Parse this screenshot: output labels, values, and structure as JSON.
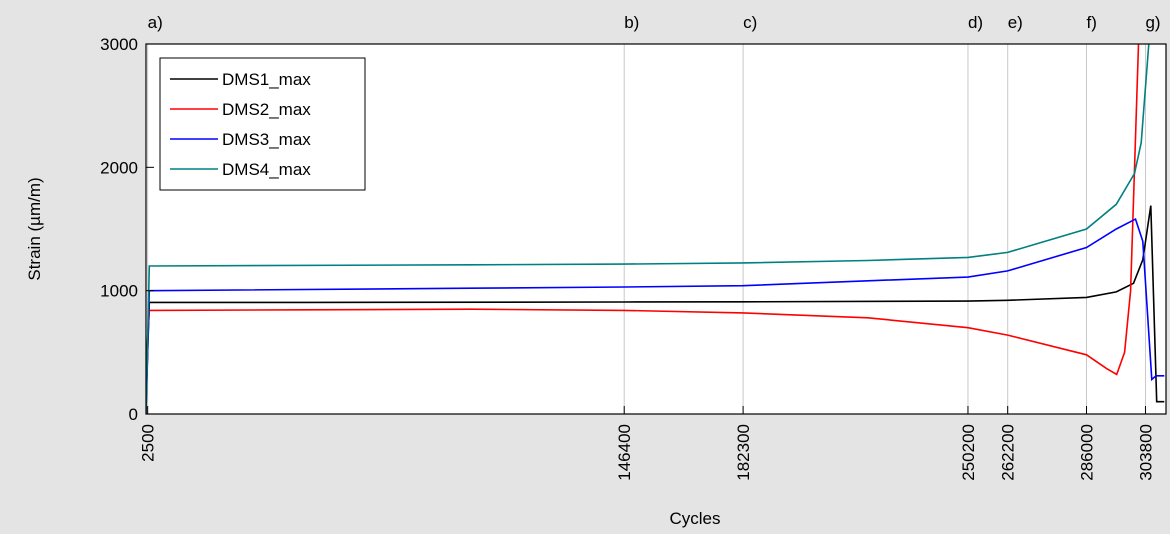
{
  "chart_data": {
    "type": "line",
    "xlabel": "Cycles",
    "ylabel": "Strain (µm/m)",
    "xlim": [
      2000,
      310000
    ],
    "ylim": [
      0,
      3000
    ],
    "xticks": [
      2500,
      146400,
      182300,
      250200,
      262200,
      286000,
      303800
    ],
    "yticks": [
      0,
      1000,
      2000,
      3000
    ],
    "grid": true,
    "legend": "upper left",
    "annotations": [
      {
        "x": 2500,
        "text": "a)"
      },
      {
        "x": 146400,
        "text": "b)"
      },
      {
        "x": 182300,
        "text": "c)"
      },
      {
        "x": 250200,
        "text": "d)"
      },
      {
        "x": 262200,
        "text": "e)"
      },
      {
        "x": 286000,
        "text": "f)"
      },
      {
        "x": 303800,
        "text": "g)"
      }
    ],
    "series": [
      {
        "name": "DMS1_max",
        "color": "#000000",
        "x": [
          2000,
          3000,
          50000,
          146400,
          182300,
          250200,
          262200,
          286000,
          295000,
          300200,
          303000,
          305400,
          307200,
          309500
        ],
        "values": [
          100,
          905,
          905,
          908,
          910,
          915,
          922,
          945,
          990,
          1060,
          1250,
          1690,
          100,
          100
        ]
      },
      {
        "name": "DMS2_max",
        "color": "#ff0000",
        "x": [
          2000,
          3000,
          50000,
          100000,
          146400,
          182300,
          220000,
          250200,
          262200,
          286000,
          292000,
          295100,
          297500,
          299300,
          301700
        ],
        "values": [
          380,
          840,
          845,
          850,
          840,
          820,
          780,
          700,
          640,
          480,
          370,
          320,
          500,
          1000,
          3000
        ]
      },
      {
        "name": "DMS3_max",
        "color": "#0000ff",
        "x": [
          2000,
          3000,
          100000,
          146400,
          182300,
          220000,
          250200,
          262200,
          286000,
          295000,
          300800,
          303000,
          305700,
          307000,
          309500
        ],
        "values": [
          0,
          1000,
          1020,
          1030,
          1040,
          1080,
          1110,
          1160,
          1350,
          1500,
          1580,
          1400,
          280,
          310,
          310
        ]
      },
      {
        "name": "DMS4_max",
        "color": "#008080",
        "x": [
          2000,
          3000,
          100000,
          146400,
          182300,
          220000,
          250200,
          262200,
          286000,
          295000,
          300500,
          302500,
          304800
        ],
        "values": [
          0,
          1200,
          1210,
          1215,
          1225,
          1245,
          1270,
          1310,
          1500,
          1700,
          1950,
          2200,
          3000
        ]
      }
    ]
  }
}
